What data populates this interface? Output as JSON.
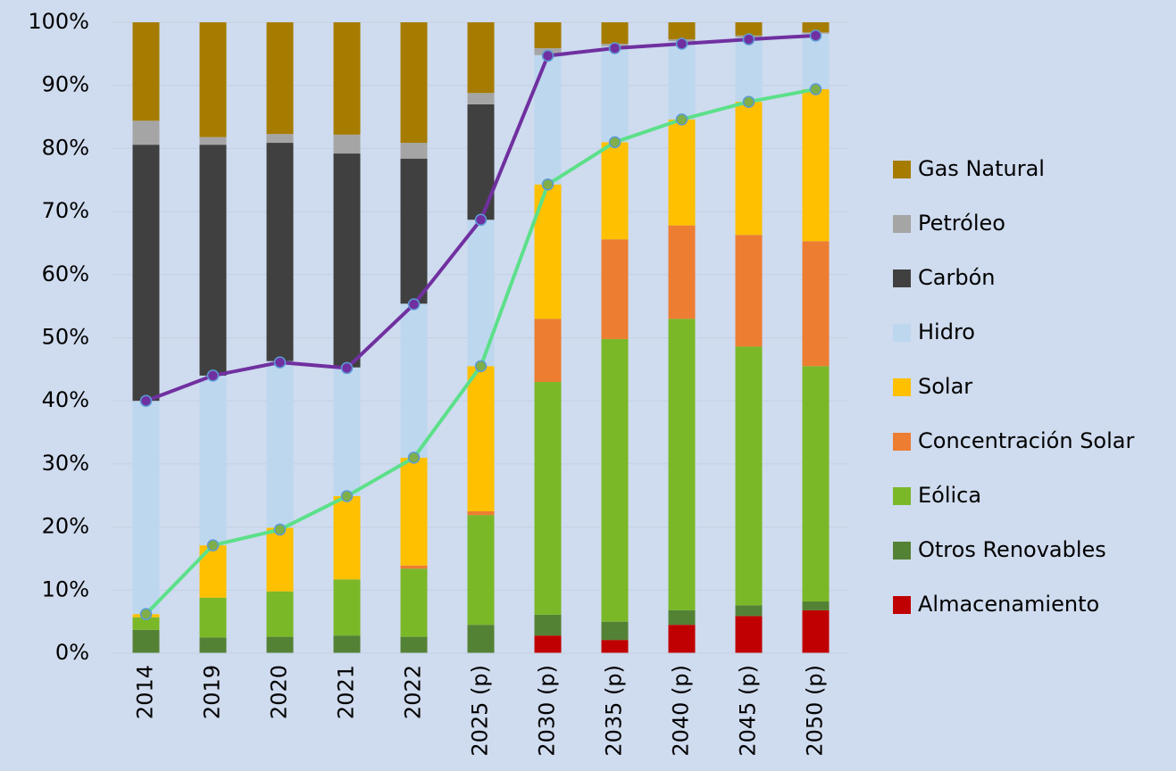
{
  "chart_data": {
    "type": "stacked_bar_line",
    "categories": [
      "2014",
      "2019",
      "2020",
      "2021",
      "2022",
      "2025 (p)",
      "2030 (p)",
      "2035 (p)",
      "2040 (p)",
      "2045 (p)",
      "2050 (p)"
    ],
    "series": [
      {
        "name": "Gas Natural",
        "color": "#a67c00",
        "values": [
          15.6,
          18.2,
          17.7,
          17.8,
          19.1,
          11.2,
          4.1,
          3.4,
          2.7,
          2.1,
          1.6
        ]
      },
      {
        "name": "Petróleo",
        "color": "#a5a5a5",
        "values": [
          3.8,
          1.2,
          1.4,
          3.0,
          2.5,
          1.8,
          1.1,
          0.4,
          0.3,
          0.3,
          0.2
        ]
      },
      {
        "name": "Carbón",
        "color": "#404040",
        "values": [
          40.6,
          36.6,
          34.6,
          33.9,
          23.0,
          18.3,
          0,
          0,
          0,
          0,
          0
        ]
      },
      {
        "name": "Hidro",
        "color": "#bdd7ee",
        "values": [
          33.8,
          26.9,
          26.4,
          20.4,
          24.4,
          23.2,
          20.5,
          15.2,
          12.4,
          10.2,
          8.8
        ]
      },
      {
        "name": "Solar",
        "color": "#ffc000",
        "values": [
          0.5,
          8.3,
          10.1,
          13.2,
          17.1,
          23.0,
          21.3,
          15.4,
          16.8,
          21.1,
          24.1
        ]
      },
      {
        "name": "Concentración Solar",
        "color": "#ed7d31",
        "values": [
          0,
          0,
          0,
          0,
          0.5,
          0.6,
          10.0,
          15.8,
          14.8,
          17.7,
          19.8
        ]
      },
      {
        "name": "Eólica",
        "color": "#7ab828",
        "values": [
          2.0,
          6.3,
          7.2,
          8.9,
          10.8,
          17.4,
          36.9,
          44.8,
          46.2,
          41.0,
          37.3
        ]
      },
      {
        "name": "Otros Renovables",
        "color": "#548235",
        "values": [
          3.7,
          2.5,
          2.6,
          2.8,
          2.6,
          4.5,
          3.3,
          2.9,
          2.3,
          1.7,
          1.4
        ]
      },
      {
        "name": "Almacenamiento",
        "color": "#c00000",
        "values": [
          0,
          0,
          0,
          0,
          0,
          0,
          2.8,
          2.1,
          4.5,
          5.9,
          6.8
        ]
      }
    ],
    "lines": [
      {
        "color": "#7030a0",
        "marker_color": "#7030a0",
        "values": [
          40.0,
          44.0,
          46.1,
          45.2,
          55.3,
          68.7,
          94.7,
          95.9,
          96.6,
          97.3,
          97.9
        ]
      },
      {
        "color": "#5ce08a",
        "marker_color": "#7fae4a",
        "values": [
          6.2,
          17.1,
          19.6,
          24.9,
          31.0,
          45.5,
          74.3,
          81.0,
          84.6,
          87.4,
          89.4
        ]
      }
    ],
    "ylim": [
      0,
      100
    ],
    "yticks": [
      {
        "value": 0,
        "label": "0%"
      },
      {
        "value": 10,
        "label": "10%"
      },
      {
        "value": 20,
        "label": "20%"
      },
      {
        "value": 30,
        "label": "30%"
      },
      {
        "value": 40,
        "label": "40%"
      },
      {
        "value": 50,
        "label": "50%"
      },
      {
        "value": 60,
        "label": "60%"
      },
      {
        "value": 70,
        "label": "70%"
      },
      {
        "value": 80,
        "label": "80%"
      },
      {
        "value": 90,
        "label": "90%"
      },
      {
        "value": 100,
        "label": "100%"
      }
    ],
    "grid": true,
    "legend": "right"
  }
}
